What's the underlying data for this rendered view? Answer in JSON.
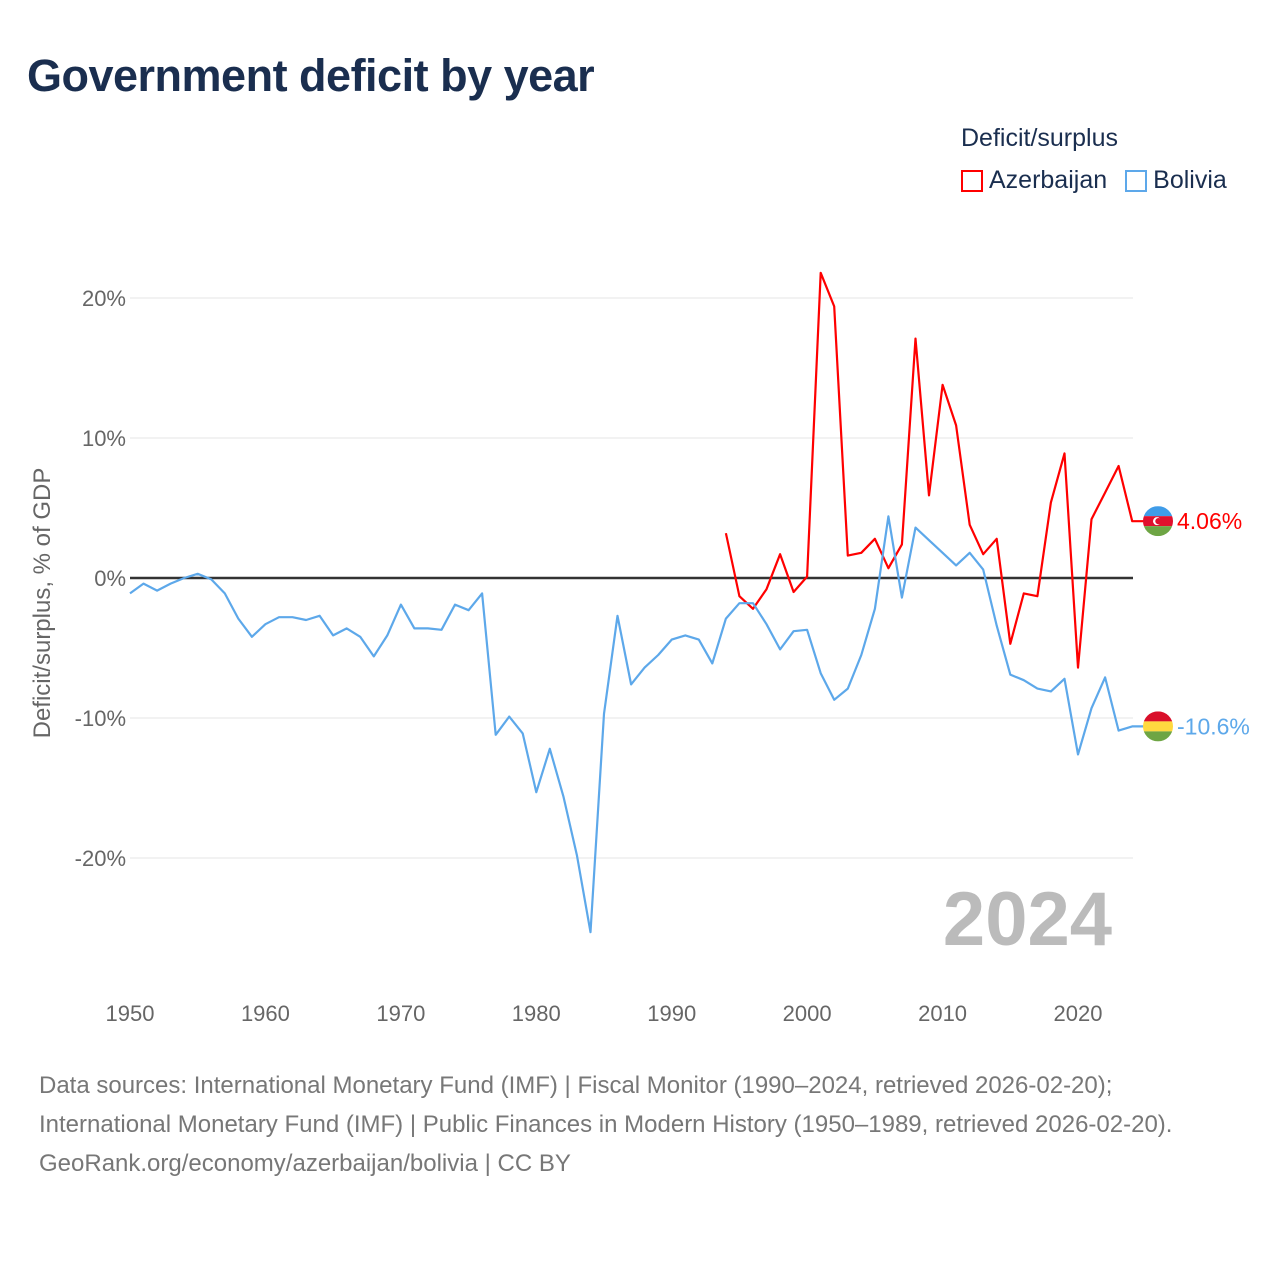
{
  "title": "Government deficit by year",
  "legend": {
    "title": "Deficit/surplus",
    "items": [
      {
        "name": "Azerbaijan",
        "color": "#ff0000"
      },
      {
        "name": "Bolivia",
        "color": "#5da8ea"
      }
    ]
  },
  "year_label": "2024",
  "footer": {
    "sources": "Data sources: International Monetary Fund (IMF) | Fiscal Monitor (1990–2024, retrieved 2026-02-20); International Monetary Fund (IMF) | Public Finances in Modern History (1950–1989, retrieved 2026-02-20).",
    "credit": "GeoRank.org/economy/azerbaijan/bolivia | CC BY"
  },
  "chart_data": {
    "type": "line",
    "title": "Government deficit by year",
    "xlabel": "",
    "ylabel": "Deficit/surplus, % of GDP",
    "xlim": [
      1950,
      2024
    ],
    "ylim": [
      -26,
      23
    ],
    "xticks": [
      1950,
      1960,
      1970,
      1980,
      1990,
      2000,
      2010,
      2020
    ],
    "xtick_labels": [
      "1950",
      "1960",
      "1970",
      "1980",
      "1990",
      "2000",
      "2010",
      "2020"
    ],
    "yticks": [
      20,
      10,
      0,
      -10,
      -20
    ],
    "ytick_labels": [
      "20%",
      "10%",
      "0%",
      "-10%",
      "-20%"
    ],
    "grid": true,
    "legend_position": "top-right",
    "series": [
      {
        "name": "Azerbaijan",
        "color": "#ff0000",
        "end_label": "4.06%",
        "start": 1994,
        "values": [
          3.2,
          -1.3,
          -2.2,
          -0.8,
          1.7,
          -1.0,
          0.1,
          21.8,
          19.4,
          1.6,
          1.8,
          2.8,
          0.7,
          2.4,
          17.1,
          5.9,
          13.8,
          10.9,
          3.8,
          1.7,
          2.8,
          -4.7,
          -1.1,
          -1.3,
          5.4,
          8.9,
          -6.4,
          4.2,
          6.1,
          8.0,
          4.06
        ]
      },
      {
        "name": "Bolivia",
        "color": "#5da8ea",
        "end_label": "-10.6%",
        "start": 1950,
        "values": [
          -1.1,
          -0.4,
          -0.9,
          -0.4,
          0,
          0.3,
          -0.1,
          -1.1,
          -2.9,
          -4.2,
          -3.3,
          -2.8,
          -2.8,
          -3.0,
          -2.7,
          -4.1,
          -3.6,
          -4.2,
          -5.6,
          -4.1,
          -1.9,
          -3.6,
          -3.6,
          -3.7,
          -1.9,
          -2.3,
          -1.1,
          -11.2,
          -9.9,
          -11.1,
          -15.3,
          -12.2,
          -15.6,
          -19.8,
          -25.3,
          -9.7,
          -2.7,
          -7.6,
          -6.4,
          -5.5,
          -4.4,
          -4.1,
          -4.4,
          -6.1,
          -2.9,
          -1.8,
          -1.8,
          -3.3,
          -5.1,
          -3.8,
          -3.7,
          -6.8,
          -8.7,
          -7.9,
          -5.5,
          -2.2,
          4.4,
          -1.4,
          3.6,
          2.7,
          1.8,
          0.9,
          1.8,
          0.6,
          -3.4,
          -6.9,
          -7.3,
          -7.9,
          -8.1,
          -7.2,
          -12.6,
          -9.3,
          -7.1,
          -10.9,
          -10.6
        ]
      }
    ]
  }
}
